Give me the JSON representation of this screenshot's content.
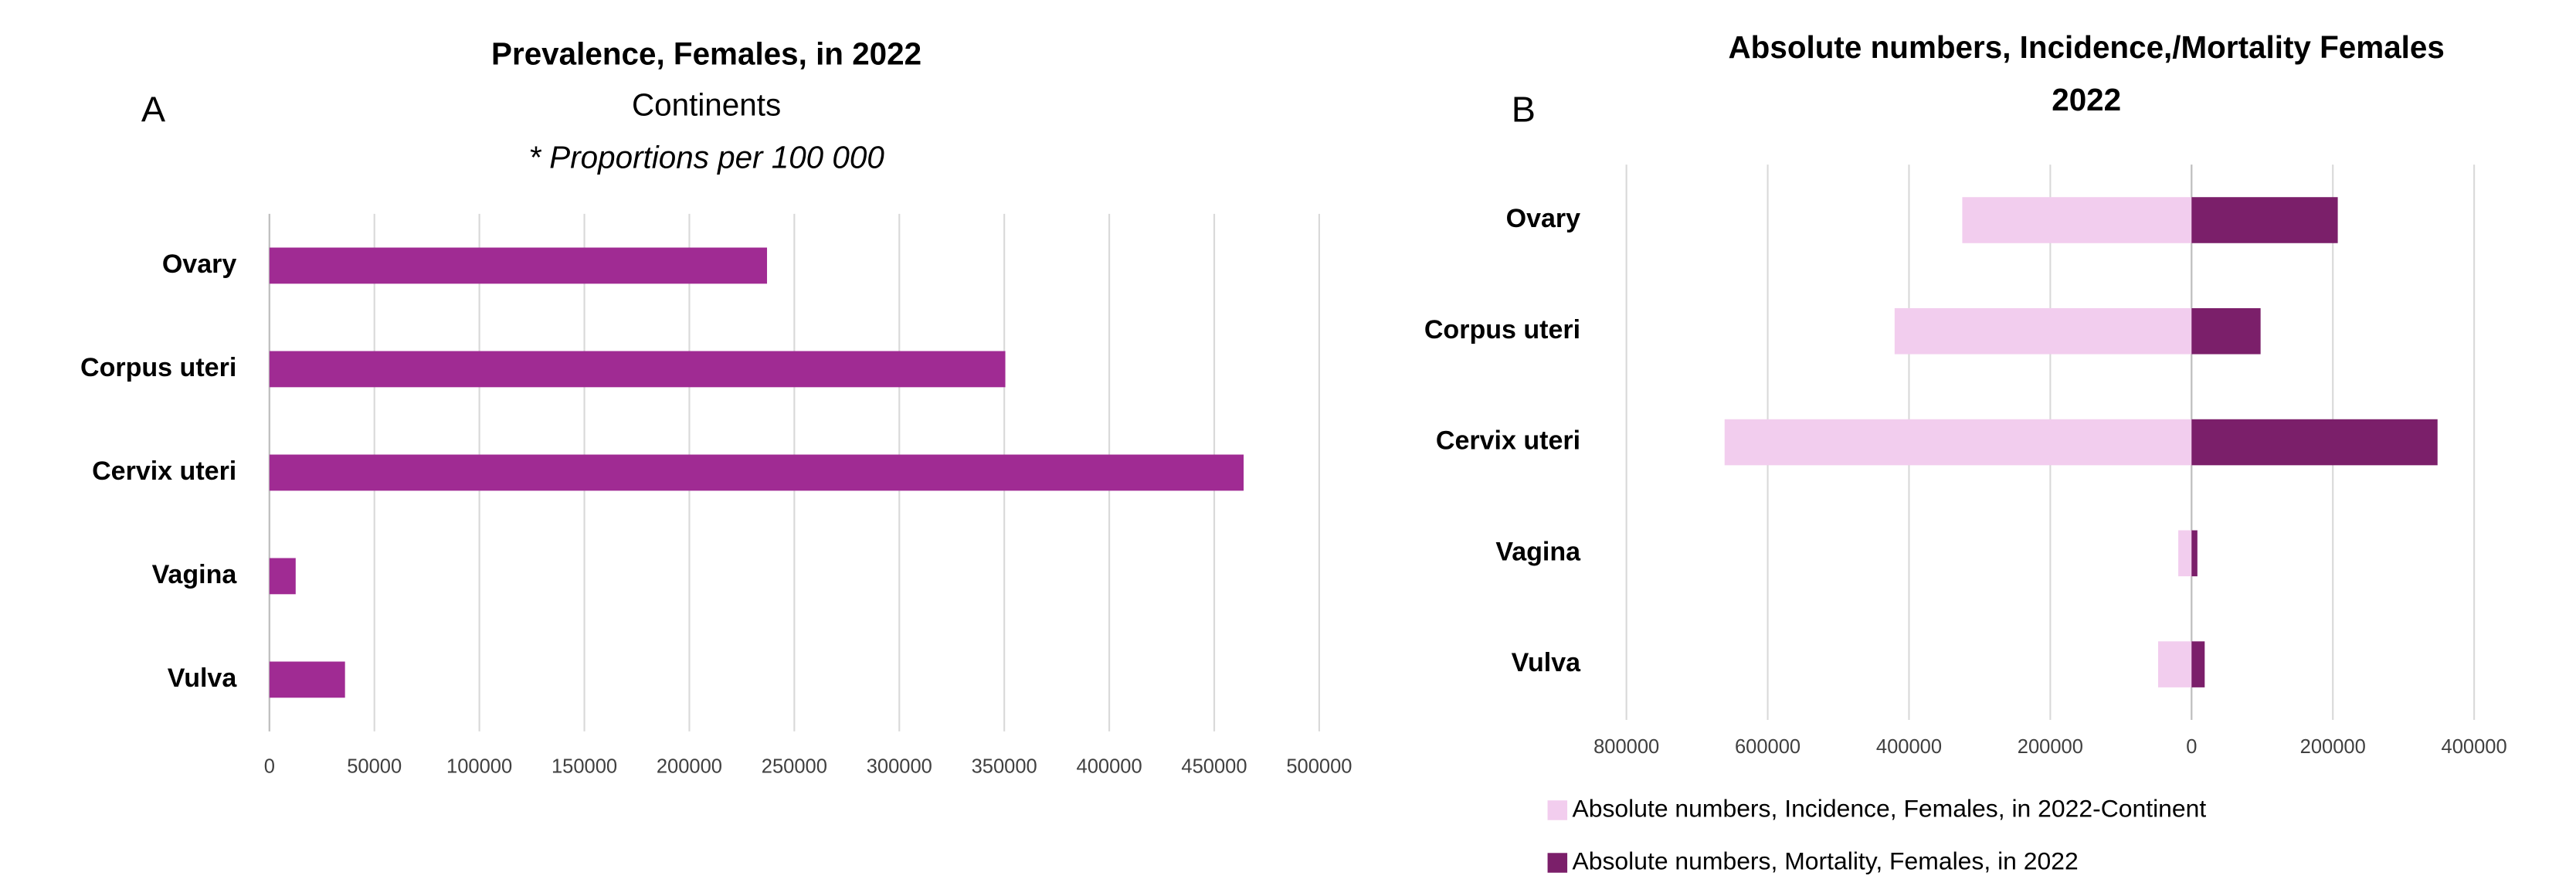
{
  "chart_data": [
    {
      "type": "bar",
      "panel_label": "A",
      "title": "Prevalence, Females, in 2022",
      "subtitle": "Continents",
      "note": "* Proportions per 100 000",
      "categories": [
        "Ovary",
        "Corpus uteri",
        "Cervix uteri",
        "Vagina",
        "Vulva"
      ],
      "values": [
        237000,
        350500,
        464000,
        12500,
        36000
      ],
      "color": "#a02b93",
      "xlim": [
        0,
        500000
      ],
      "xticks": [
        0,
        50000,
        100000,
        150000,
        200000,
        250000,
        300000,
        350000,
        400000,
        450000,
        500000
      ],
      "grid": true
    },
    {
      "type": "bar",
      "panel_label": "B",
      "title": [
        "Absolute numbers, Incidence,/Mortality Females",
        "2022"
      ],
      "categories": [
        "Ovary",
        "Corpus uteri",
        "Cervix uteri",
        "Vagina",
        "Vulva"
      ],
      "series": [
        {
          "name": "Absolute numbers, Incidence, Females, in 2022-Continent",
          "color": "#f2cdee",
          "values": [
            -324603,
            -420368,
            -661021,
            -18819,
            -47342
          ]
        },
        {
          "name": "Absolute numbers, Mortality, Females, in 2022",
          "color": "#7b1f6a",
          "values": [
            206956,
            97704,
            348189,
            8240,
            18579
          ]
        }
      ],
      "xlim": [
        -800000,
        400000
      ],
      "xticks": [
        {
          "value": -800000,
          "label": "800000"
        },
        {
          "value": -600000,
          "label": "600000"
        },
        {
          "value": -400000,
          "label": "400000"
        },
        {
          "value": -200000,
          "label": "200000"
        },
        0,
        200000,
        400000
      ],
      "grid": true,
      "legend": "bottom"
    }
  ]
}
